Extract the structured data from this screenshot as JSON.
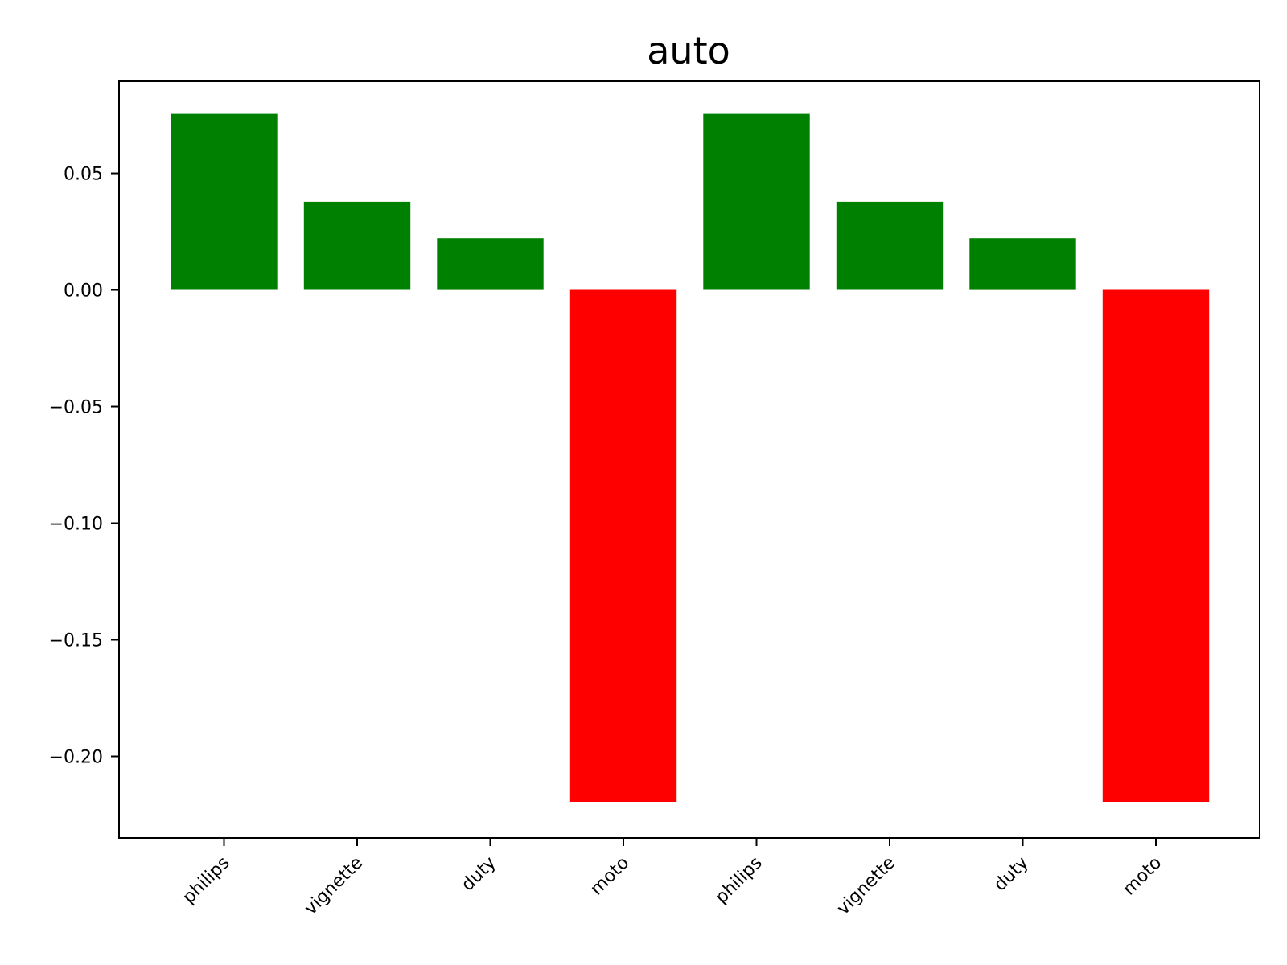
{
  "chart_data": {
    "type": "bar",
    "title": "auto",
    "xlabel": "",
    "ylabel": "",
    "categories": [
      "philips",
      "vignette",
      "duty",
      "moto",
      "philips",
      "vignette",
      "duty",
      "moto"
    ],
    "values": [
      0.0755,
      0.0378,
      0.0222,
      -0.2195,
      0.0755,
      0.0378,
      0.0222,
      -0.2195
    ],
    "bar_colors": [
      "#008000",
      "#008000",
      "#008000",
      "#ff0000",
      "#008000",
      "#008000",
      "#008000",
      "#ff0000"
    ],
    "positive_color": "#008000",
    "negative_color": "#ff0000",
    "ylim": [
      -0.235,
      0.0895
    ],
    "yticks": [
      0.05,
      0.0,
      -0.05,
      -0.1,
      -0.15,
      -0.2
    ],
    "ytick_labels": [
      "0.05",
      "0.00",
      "−0.05",
      "−0.10",
      "−0.15",
      "−0.20"
    ],
    "xtick_rotation_deg": 45,
    "grid": false,
    "legend": false
  }
}
